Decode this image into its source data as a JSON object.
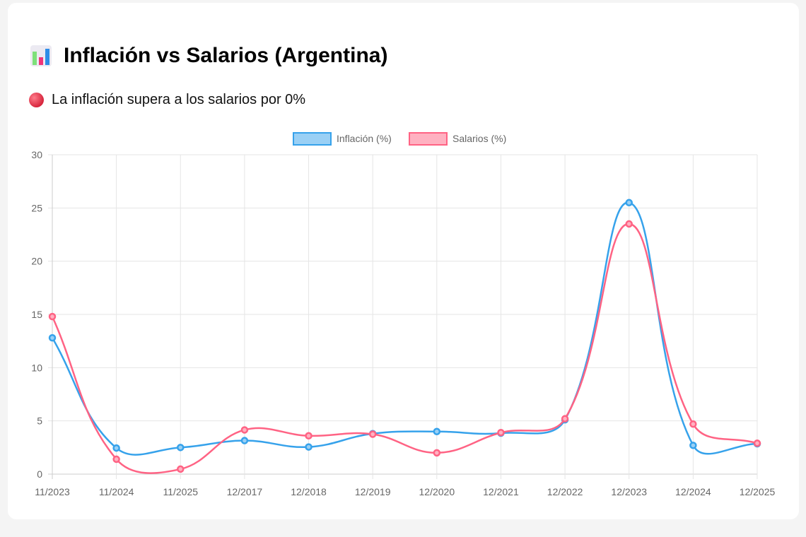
{
  "header": {
    "title": "Inflación vs Salarios (Argentina)",
    "title_icon": "bar-chart-icon",
    "status": "La inflación supera a los salarios por 0%",
    "status_icon": "red-circle-icon"
  },
  "chart_data": {
    "type": "line",
    "categories": [
      "11/2023",
      "11/2024",
      "11/2025",
      "12/2017",
      "12/2018",
      "12/2019",
      "12/2020",
      "12/2021",
      "12/2022",
      "12/2023",
      "12/2024",
      "12/2025"
    ],
    "series": [
      {
        "name": "Inflación (%)",
        "color": "#36a2eb",
        "fill": "#9ad0f5",
        "values": [
          12.8,
          2.45,
          2.5,
          3.15,
          2.55,
          3.8,
          4.0,
          3.85,
          5.1,
          25.5,
          2.7,
          2.85
        ]
      },
      {
        "name": "Salarios (%)",
        "color": "#ff6384",
        "fill": "#ffb1c1",
        "values": [
          14.8,
          1.4,
          0.47,
          4.15,
          3.6,
          3.75,
          2.0,
          3.9,
          5.2,
          23.5,
          4.7,
          2.9
        ]
      }
    ],
    "ylim": [
      0,
      30
    ],
    "yticks": [
      0,
      5,
      10,
      15,
      20,
      25,
      30
    ],
    "grid": true,
    "legend": "top"
  }
}
